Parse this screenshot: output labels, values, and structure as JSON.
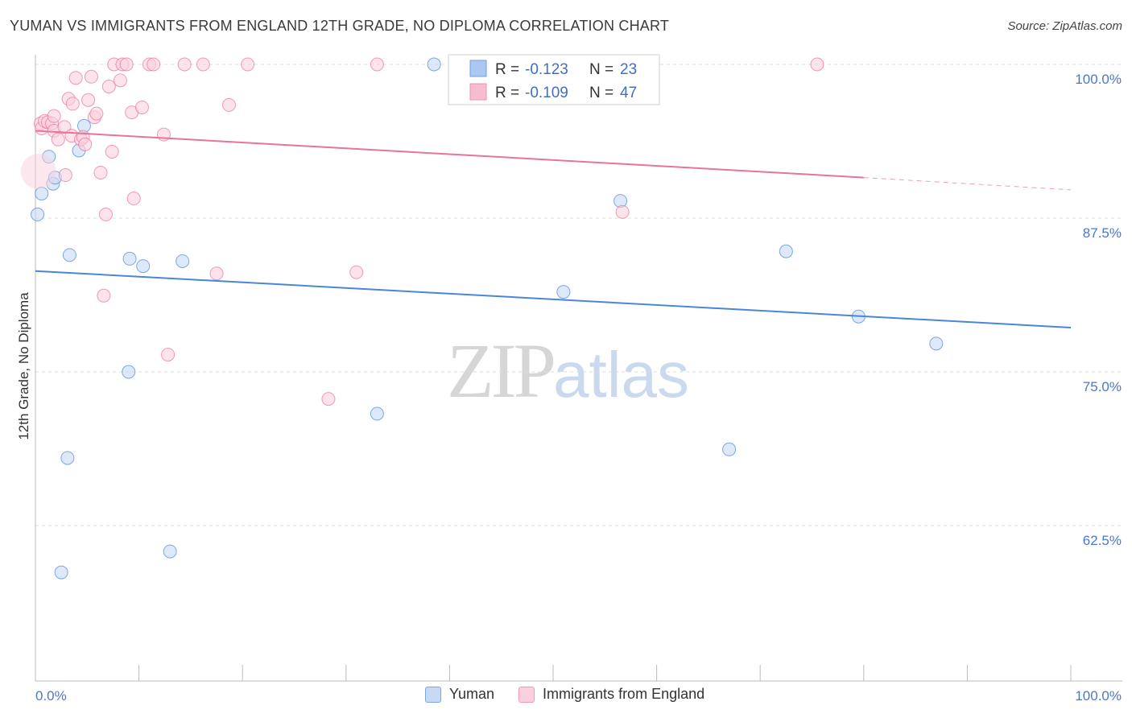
{
  "title": "YUMAN VS IMMIGRANTS FROM ENGLAND 12TH GRADE, NO DIPLOMA CORRELATION CHART",
  "source": "Source: ZipAtlas.com",
  "watermark": {
    "zip": "ZIP",
    "atlas": "atlas"
  },
  "legend_stats": [
    {
      "r_label": "R =",
      "r_value": "-0.123",
      "n_label": "N =",
      "n_value": "23",
      "color": "#aac8f0",
      "stroke": "#6f9fe0"
    },
    {
      "r_label": "R =",
      "r_value": "-0.109",
      "n_label": "N =",
      "n_value": "47",
      "color": "#f8bcd0",
      "stroke": "#ee8fb0"
    }
  ],
  "bottom_legend": [
    {
      "label": "Yuman",
      "color": "#c7daf5",
      "stroke": "#7fa6e0"
    },
    {
      "label": "Immigrants from England",
      "color": "#fbd0de",
      "stroke": "#ef9ab8"
    }
  ],
  "chart_data": {
    "type": "scatter",
    "ylabel": "12th Grade, No Diploma",
    "xlabel": "",
    "xlim": [
      0,
      100
    ],
    "ylim": [
      52.5,
      101.5
    ],
    "x_tick_labels": [
      "0.0%",
      "100.0%"
    ],
    "y_ticks": [
      100.0,
      87.5,
      75.0,
      62.5
    ],
    "y_tick_labels": [
      "100.0%",
      "87.5%",
      "75.0%",
      "62.5%"
    ],
    "grid": true,
    "series": [
      {
        "name": "Yuman",
        "color": "#4a86d8",
        "fill": "#c7daf5",
        "trend": {
          "x0": 0,
          "y0": 83.2,
          "x1": 100,
          "y1": 78.6
        },
        "points": [
          [
            0.2,
            87.8
          ],
          [
            0.6,
            89.5
          ],
          [
            1.3,
            92.5
          ],
          [
            1.7,
            90.3
          ],
          [
            1.9,
            90.8
          ],
          [
            3.3,
            84.5
          ],
          [
            4.2,
            93.0
          ],
          [
            4.7,
            95.0
          ],
          [
            9.1,
            84.2
          ],
          [
            10.4,
            83.6
          ],
          [
            14.2,
            84.0
          ],
          [
            9.0,
            75.0
          ],
          [
            3.1,
            68.0
          ],
          [
            2.5,
            58.7
          ],
          [
            13.0,
            60.4
          ],
          [
            38.5,
            100.0
          ],
          [
            33.0,
            71.6
          ],
          [
            51.0,
            81.5
          ],
          [
            56.5,
            88.9
          ],
          [
            67.0,
            68.7
          ],
          [
            72.5,
            84.8
          ],
          [
            79.5,
            79.5
          ],
          [
            87.0,
            77.3
          ]
        ]
      },
      {
        "name": "Immigrants from England",
        "color": "#e8739b",
        "fill": "#fbd0de",
        "trend": {
          "x0": 0,
          "y0": 94.6,
          "x1": 80,
          "y1": 90.8,
          "dash_to_x": 100,
          "dash_to_y": 89.8
        },
        "points": [
          [
            0.5,
            95.2
          ],
          [
            0.6,
            94.8
          ],
          [
            0.9,
            95.4
          ],
          [
            1.2,
            95.3
          ],
          [
            1.6,
            95.2
          ],
          [
            1.8,
            94.6
          ],
          [
            1.8,
            95.8
          ],
          [
            2.2,
            93.9
          ],
          [
            2.8,
            94.9
          ],
          [
            2.9,
            91.0
          ],
          [
            3.2,
            97.2
          ],
          [
            3.6,
            96.8
          ],
          [
            3.5,
            94.2
          ],
          [
            3.9,
            98.9
          ],
          [
            4.4,
            93.9
          ],
          [
            4.6,
            94.1
          ],
          [
            4.8,
            93.5
          ],
          [
            5.1,
            97.1
          ],
          [
            5.4,
            99.0
          ],
          [
            5.7,
            95.7
          ],
          [
            5.9,
            96.0
          ],
          [
            6.3,
            91.2
          ],
          [
            6.6,
            81.2
          ],
          [
            6.8,
            87.8
          ],
          [
            7.1,
            98.2
          ],
          [
            7.4,
            92.9
          ],
          [
            7.6,
            100.0
          ],
          [
            8.2,
            98.7
          ],
          [
            8.4,
            100.0
          ],
          [
            8.8,
            100.0
          ],
          [
            9.3,
            96.1
          ],
          [
            9.5,
            89.1
          ],
          [
            10.3,
            96.5
          ],
          [
            11.0,
            100.0
          ],
          [
            11.4,
            100.0
          ],
          [
            12.4,
            94.3
          ],
          [
            12.8,
            76.4
          ],
          [
            14.4,
            100.0
          ],
          [
            16.2,
            100.0
          ],
          [
            17.5,
            83.0
          ],
          [
            18.7,
            96.7
          ],
          [
            20.5,
            100.0
          ],
          [
            28.3,
            72.8
          ],
          [
            31.0,
            83.1
          ],
          [
            33.0,
            100.0
          ],
          [
            56.7,
            88.0
          ],
          [
            75.5,
            100.0
          ]
        ]
      }
    ]
  }
}
